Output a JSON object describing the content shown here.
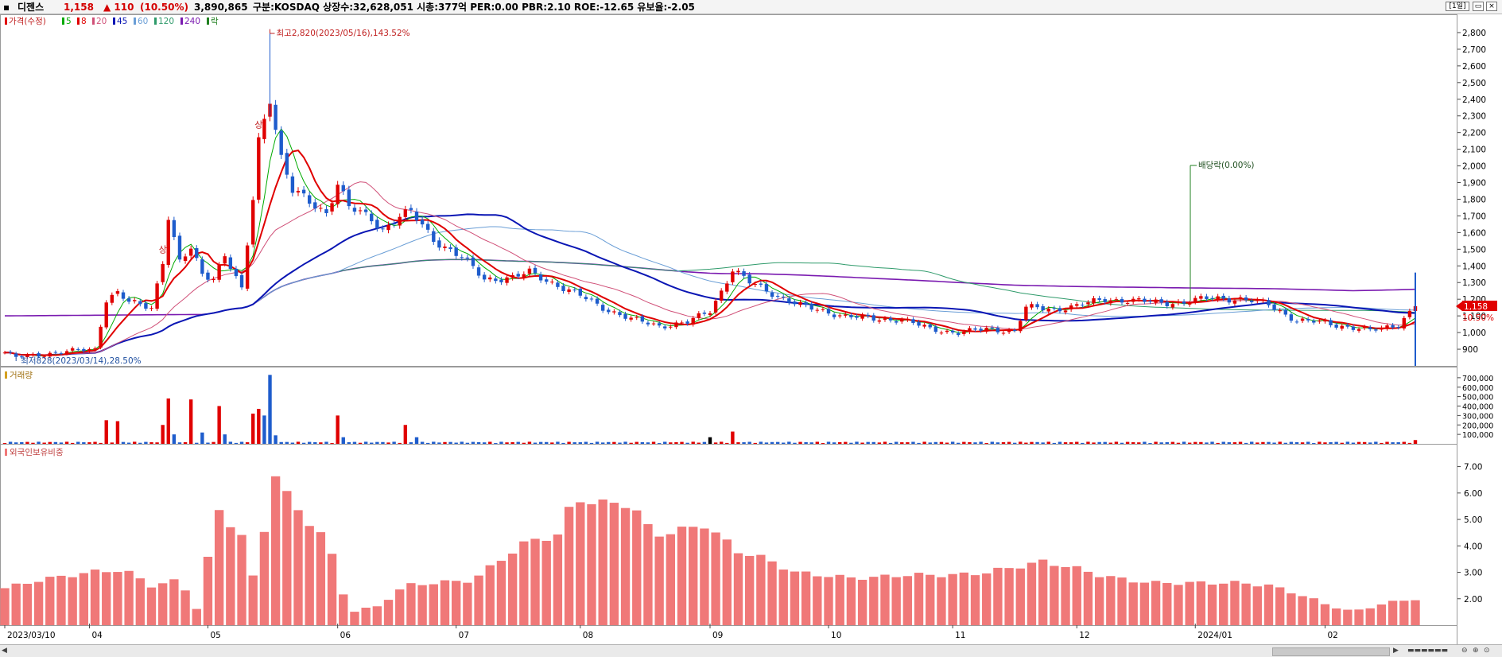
{
  "header": {
    "name": "디젠스",
    "price": "1,158",
    "change": "▲ 110",
    "change_pct": "(10.50%)",
    "volume": "3,890,865",
    "info": "구분:KOSDAQ 상장수:32,628,051 시총:377억 PER:0.00 PBR:2.10 ROE:-12.65 유보율:-2.05",
    "period": "[1일]"
  },
  "colors": {
    "up": "#e00000",
    "down": "#1e5ccc",
    "ma5": "#00aa00",
    "ma8": "#e00000",
    "ma20": "#d05078",
    "ma45": "#0a16b4",
    "ma60": "#6a9ed6",
    "ma120": "#2e9a6a",
    "ma240": "#7a1ab0",
    "foreign": "#f07878",
    "dividend": "#208020"
  },
  "chart_data": [
    {
      "type": "candlestick",
      "legend": {
        "title": "가격(수정)",
        "items": [
          {
            "label": "5",
            "color": "#00aa00"
          },
          {
            "label": "8",
            "color": "#e00000"
          },
          {
            "label": "20",
            "color": "#d05078"
          },
          {
            "label": "45",
            "color": "#0a16b4"
          },
          {
            "label": "60",
            "color": "#6a9ed6"
          },
          {
            "label": "120",
            "color": "#2e9a6a"
          },
          {
            "label": "240",
            "color": "#7a1ab0"
          },
          {
            "label": "락",
            "color": "#208020"
          }
        ]
      },
      "ylim": [
        800,
        2900
      ],
      "y_ticks": [
        {
          "value": 900,
          "label": "900"
        },
        {
          "value": 1000,
          "label": "1,000"
        },
        {
          "value": 1100,
          "label": "1,100"
        },
        {
          "value": 1200,
          "label": "1,200"
        },
        {
          "value": 1300,
          "label": "1,300"
        },
        {
          "value": 1400,
          "label": "1,400"
        },
        {
          "value": 1500,
          "label": "1,500"
        },
        {
          "value": 1600,
          "label": "1,600"
        },
        {
          "value": 1700,
          "label": "1,700"
        },
        {
          "value": 1800,
          "label": "1,800"
        },
        {
          "value": 1900,
          "label": "1,900"
        },
        {
          "value": 2000,
          "label": "2,000"
        },
        {
          "value": 2100,
          "label": "2,100"
        },
        {
          "value": 2200,
          "label": "2,200"
        },
        {
          "value": 2300,
          "label": "2,300"
        },
        {
          "value": 2400,
          "label": "2,400"
        },
        {
          "value": 2500,
          "label": "2,500"
        },
        {
          "value": 2600,
          "label": "2,600"
        },
        {
          "value": 2700,
          "label": "2,700"
        },
        {
          "value": 2800,
          "label": "2,800"
        }
      ],
      "x_labels": [
        "2023/03/10",
        "04",
        "05",
        "06",
        "07",
        "08",
        "09",
        "10",
        "11",
        "12",
        "2024/01",
        "02"
      ],
      "price_path": [
        [
          "2023/03/10",
          880
        ],
        [
          "2023/03/14",
          850
        ],
        [
          "2023/03/23",
          880
        ],
        [
          "2023/04/03",
          900
        ],
        [
          "2023/04/05",
          1200
        ],
        [
          "2023/04/07",
          1240
        ],
        [
          "2023/04/11",
          1180
        ],
        [
          "2023/04/17",
          1150
        ],
        [
          "2023/04/19",
          1430
        ],
        [
          "2023/04/20",
          1700
        ],
        [
          "2023/04/24",
          1420
        ],
        [
          "2023/04/26",
          1500
        ],
        [
          "2023/04/28",
          1350
        ],
        [
          "2023/05/02",
          1330
        ],
        [
          "2023/05/04",
          1470
        ],
        [
          "2023/05/09",
          1250
        ],
        [
          "2023/05/11",
          1800
        ],
        [
          "2023/05/12",
          2150
        ],
        [
          "2023/05/16",
          2420
        ],
        [
          "2023/05/18",
          2050
        ],
        [
          "2023/05/22",
          1850
        ],
        [
          "2023/05/25",
          1780
        ],
        [
          "2023/05/30",
          1720
        ],
        [
          "2023/06/01",
          1900
        ],
        [
          "2023/06/05",
          1750
        ],
        [
          "2023/06/09",
          1680
        ],
        [
          "2023/06/13",
          1620
        ],
        [
          "2023/06/16",
          1700
        ],
        [
          "2023/06/20",
          1720
        ],
        [
          "2023/06/26",
          1560
        ],
        [
          "2023/07/03",
          1450
        ],
        [
          "2023/07/07",
          1320
        ],
        [
          "2023/07/14",
          1330
        ],
        [
          "2023/07/19",
          1360
        ],
        [
          "2023/07/25",
          1300
        ],
        [
          "2023/08/01",
          1220
        ],
        [
          "2023/08/07",
          1150
        ],
        [
          "2023/08/14",
          1080
        ],
        [
          "2023/08/21",
          1040
        ],
        [
          "2023/08/28",
          1060
        ],
        [
          "2023/09/01",
          1130
        ],
        [
          "2023/09/05",
          1250
        ],
        [
          "2023/09/07",
          1380
        ],
        [
          "2023/09/12",
          1300
        ],
        [
          "2023/09/19",
          1220
        ],
        [
          "2023/09/26",
          1150
        ],
        [
          "2023/10/05",
          1100
        ],
        [
          "2023/10/12",
          1080
        ],
        [
          "2023/10/19",
          1080
        ],
        [
          "2023/10/26",
          1020
        ],
        [
          "2023/11/02",
          1000
        ],
        [
          "2023/11/09",
          1020
        ],
        [
          "2023/11/16",
          1010
        ],
        [
          "2023/11/20",
          1150
        ],
        [
          "2023/11/27",
          1140
        ],
        [
          "2023/12/01",
          1160
        ],
        [
          "2023/12/08",
          1200
        ],
        [
          "2023/12/15",
          1190
        ],
        [
          "2023/12/22",
          1180
        ],
        [
          "2023/12/28",
          1180
        ],
        [
          "2024/01/04",
          1210
        ],
        [
          "2024/01/11",
          1200
        ],
        [
          "2024/01/18",
          1170
        ],
        [
          "2024/01/25",
          1070
        ],
        [
          "2024/02/01",
          1060
        ],
        [
          "2024/02/06",
          1040
        ],
        [
          "2024/02/13",
          1010
        ],
        [
          "2024/02/20",
          1050
        ],
        [
          "2024/02/23",
          1158
        ]
      ],
      "annotations": {
        "high": "최고2,820(2023/05/16),143.52%",
        "low": "최저828(2023/03/14),28.50%",
        "dividend": "배당락(0.00%)",
        "limit_up": "상"
      },
      "current": {
        "price": "1,158",
        "pct": "10.50%"
      }
    },
    {
      "type": "bar",
      "title": "거래량",
      "ylim": [
        0,
        800000
      ],
      "y_ticks": [
        {
          "value": 700000,
          "label": "700,000"
        },
        {
          "value": 600000,
          "label": "600,000"
        },
        {
          "value": 500000,
          "label": "500,000"
        },
        {
          "value": 400000,
          "label": "400,000"
        },
        {
          "value": 300000,
          "label": "300,000"
        },
        {
          "value": 200000,
          "label": "200,000"
        },
        {
          "value": 100000,
          "label": "100,000"
        }
      ],
      "spikes": [
        {
          "date": "2023/04/05",
          "value": 250000,
          "dir": "up"
        },
        {
          "date": "2023/04/07",
          "value": 240000,
          "dir": "up"
        },
        {
          "date": "2023/04/19",
          "value": 200000,
          "dir": "up"
        },
        {
          "date": "2023/04/20",
          "value": 480000,
          "dir": "up"
        },
        {
          "date": "2023/04/21",
          "value": 100000,
          "dir": "down"
        },
        {
          "date": "2023/04/26",
          "value": 470000,
          "dir": "up"
        },
        {
          "date": "2023/04/28",
          "value": 120000,
          "dir": "down"
        },
        {
          "date": "2023/05/03",
          "value": 400000,
          "dir": "up"
        },
        {
          "date": "2023/05/04",
          "value": 100000,
          "dir": "down"
        },
        {
          "date": "2023/05/11",
          "value": 320000,
          "dir": "up"
        },
        {
          "date": "2023/05/12",
          "value": 370000,
          "dir": "up"
        },
        {
          "date": "2023/05/15",
          "value": 300000,
          "dir": "down"
        },
        {
          "date": "2023/05/16",
          "value": 730000,
          "dir": "down"
        },
        {
          "date": "2023/05/17",
          "value": 90000,
          "dir": "down"
        },
        {
          "date": "2023/06/01",
          "value": 300000,
          "dir": "up"
        },
        {
          "date": "2023/06/02",
          "value": 70000,
          "dir": "down"
        },
        {
          "date": "2023/06/19",
          "value": 200000,
          "dir": "up"
        },
        {
          "date": "2023/06/21",
          "value": 70000,
          "dir": "down"
        },
        {
          "date": "2023/09/01",
          "value": 70000,
          "dir": "flat"
        },
        {
          "date": "2023/09/07",
          "value": 130000,
          "dir": "up"
        },
        {
          "date": "2024/02/23",
          "value": 40000,
          "dir": "up"
        }
      ]
    },
    {
      "type": "bar",
      "title": "외국인보유비중",
      "ylim": [
        1.0,
        7.8
      ],
      "y_ticks": [
        {
          "value": 7,
          "label": "7.00"
        },
        {
          "value": 6,
          "label": "6.00"
        },
        {
          "value": 5,
          "label": "5.00"
        },
        {
          "value": 4,
          "label": "4.00"
        },
        {
          "value": 3,
          "label": "3.00"
        },
        {
          "value": 2,
          "label": "2.00"
        }
      ],
      "path": [
        [
          "2023/03/10",
          2.4
        ],
        [
          "2023/03/20",
          2.7
        ],
        [
          "2023/03/31",
          3.0
        ],
        [
          "2023/04/10",
          3.1
        ],
        [
          "2023/04/17",
          2.5
        ],
        [
          "2023/04/24",
          2.7
        ],
        [
          "2023/04/28",
          1.3
        ],
        [
          "2023/05/01",
          3.5
        ],
        [
          "2023/05/03",
          5.3
        ],
        [
          "2023/05/09",
          4.4
        ],
        [
          "2023/05/12",
          2.0
        ],
        [
          "2023/05/16",
          7.2
        ],
        [
          "2023/05/22",
          5.5
        ],
        [
          "2023/05/30",
          4.3
        ],
        [
          "2023/06/05",
          1.5
        ],
        [
          "2023/06/12",
          1.7
        ],
        [
          "2023/06/19",
          2.5
        ],
        [
          "2023/06/26",
          2.6
        ],
        [
          "2023/07/05",
          2.7
        ],
        [
          "2023/07/12",
          3.5
        ],
        [
          "2023/07/19",
          4.2
        ],
        [
          "2023/07/26",
          4.4
        ],
        [
          "2023/07/31",
          5.8
        ],
        [
          "2023/08/07",
          5.6
        ],
        [
          "2023/08/14",
          5.6
        ],
        [
          "2023/08/18",
          4.4
        ],
        [
          "2023/08/25",
          4.6
        ],
        [
          "2023/08/31",
          4.8
        ],
        [
          "2023/09/08",
          3.8
        ],
        [
          "2023/09/15",
          3.5
        ],
        [
          "2023/09/22",
          3.0
        ],
        [
          "2023/10/05",
          2.8
        ],
        [
          "2023/10/12",
          2.8
        ],
        [
          "2023/10/19",
          2.9
        ],
        [
          "2023/10/26",
          2.9
        ],
        [
          "2023/11/02",
          2.9
        ],
        [
          "2023/11/09",
          3.0
        ],
        [
          "2023/11/16",
          3.2
        ],
        [
          "2023/11/23",
          3.4
        ],
        [
          "2023/11/30",
          3.2
        ],
        [
          "2023/12/07",
          2.9
        ],
        [
          "2023/12/14",
          2.7
        ],
        [
          "2023/12/21",
          2.6
        ],
        [
          "2023/12/28",
          2.6
        ],
        [
          "2024/01/04",
          2.6
        ],
        [
          "2024/01/11",
          2.6
        ],
        [
          "2024/01/18",
          2.5
        ],
        [
          "2024/01/25",
          2.2
        ],
        [
          "2024/02/01",
          1.8
        ],
        [
          "2024/02/08",
          1.5
        ],
        [
          "2024/02/15",
          1.8
        ],
        [
          "2024/02/23",
          2.0
        ]
      ]
    }
  ]
}
